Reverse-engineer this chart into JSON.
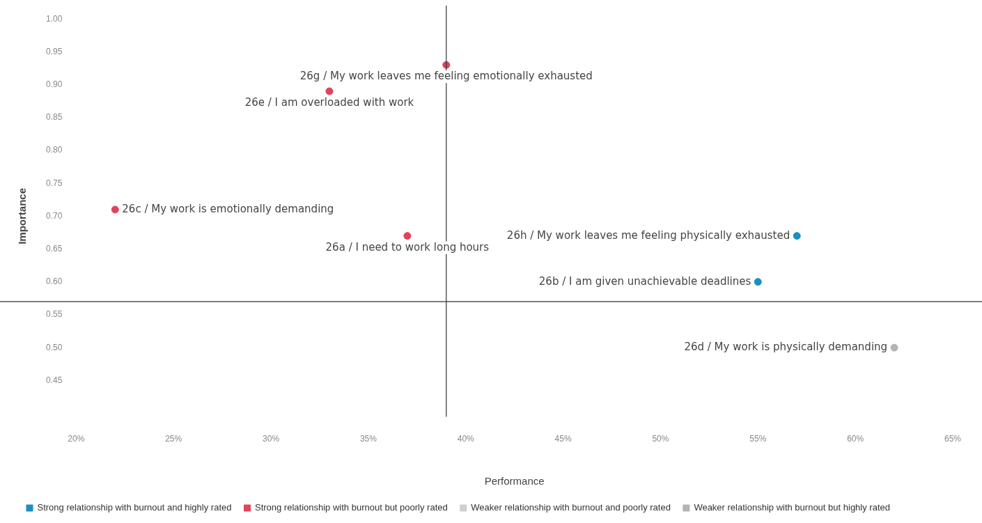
{
  "chart_data": {
    "type": "scatter",
    "xlabel": "Performance",
    "ylabel": "Importance",
    "xlim": [
      20,
      65
    ],
    "xticks": [
      {
        "value": 20,
        "label": "20%"
      },
      {
        "value": 25,
        "label": "25%"
      },
      {
        "value": 30,
        "label": "30%"
      },
      {
        "value": 35,
        "label": "35%"
      },
      {
        "value": 40,
        "label": "40%"
      },
      {
        "value": 45,
        "label": "45%"
      },
      {
        "value": 50,
        "label": "50%"
      },
      {
        "value": 55,
        "label": "55%"
      },
      {
        "value": 60,
        "label": "60%"
      },
      {
        "value": 65,
        "label": "65%"
      }
    ],
    "ylim": [
      0.4,
      1.0
    ],
    "yticks": [
      0.45,
      {
        "value": 0.5,
        "label": "0.50"
      },
      0.55,
      {
        "value": 0.6,
        "label": "0.60"
      },
      0.65,
      {
        "value": 0.7,
        "label": "0.70"
      },
      0.75,
      {
        "value": 0.8,
        "label": "0.80"
      },
      0.85,
      {
        "value": 0.9,
        "label": "0.90"
      },
      0.95,
      {
        "value": 1.0,
        "label": "1.00"
      }
    ],
    "grid": false,
    "legend": "bottom",
    "marker": "circle",
    "series": [
      {
        "name": "Strong relationship with burnout and highly rated",
        "color": "#1a8fc4",
        "x": [
          57,
          55
        ],
        "values": [
          0.67,
          0.6
        ]
      },
      {
        "name": "Strong relationship with burnout but poorly rated",
        "color": "#e0435a",
        "x": [
          39,
          33,
          22,
          37
        ],
        "values": [
          0.93,
          0.89,
          0.71,
          0.67
        ]
      },
      {
        "name": "Weaker relationship with burnout and poorly rated",
        "color": "#cfcfcf"
      },
      {
        "name": "Weaker relationship with burnout but highly rated",
        "color": "#b4b4b4",
        "x": [
          62
        ],
        "values": [
          0.5
        ]
      }
    ],
    "ref_lines": [
      {
        "axis": "x",
        "value": 39,
        "color": "#333333"
      },
      {
        "axis": "y",
        "value": 0.57,
        "color": "#333333"
      }
    ],
    "annotations": [
      {
        "text": "26g / My work leaves me feeling emotionally exhausted",
        "x": 39,
        "y": 0.93
      },
      {
        "text": "26e / I am overloaded with work",
        "x": 33,
        "y": 0.89
      },
      {
        "text": "26c / My work is emotionally demanding",
        "x": 22,
        "y": 0.71
      },
      {
        "text": "26a / I need to work long hours",
        "x": 37,
        "y": 0.67
      },
      {
        "text": "26h / My work leaves me feeling physically exhausted",
        "x": 57,
        "y": 0.67
      },
      {
        "text": "26b / I am given unachievable deadlines",
        "x": 55,
        "y": 0.6
      },
      {
        "text": "26d / My work is physically demanding",
        "x": 62,
        "y": 0.5
      }
    ]
  }
}
